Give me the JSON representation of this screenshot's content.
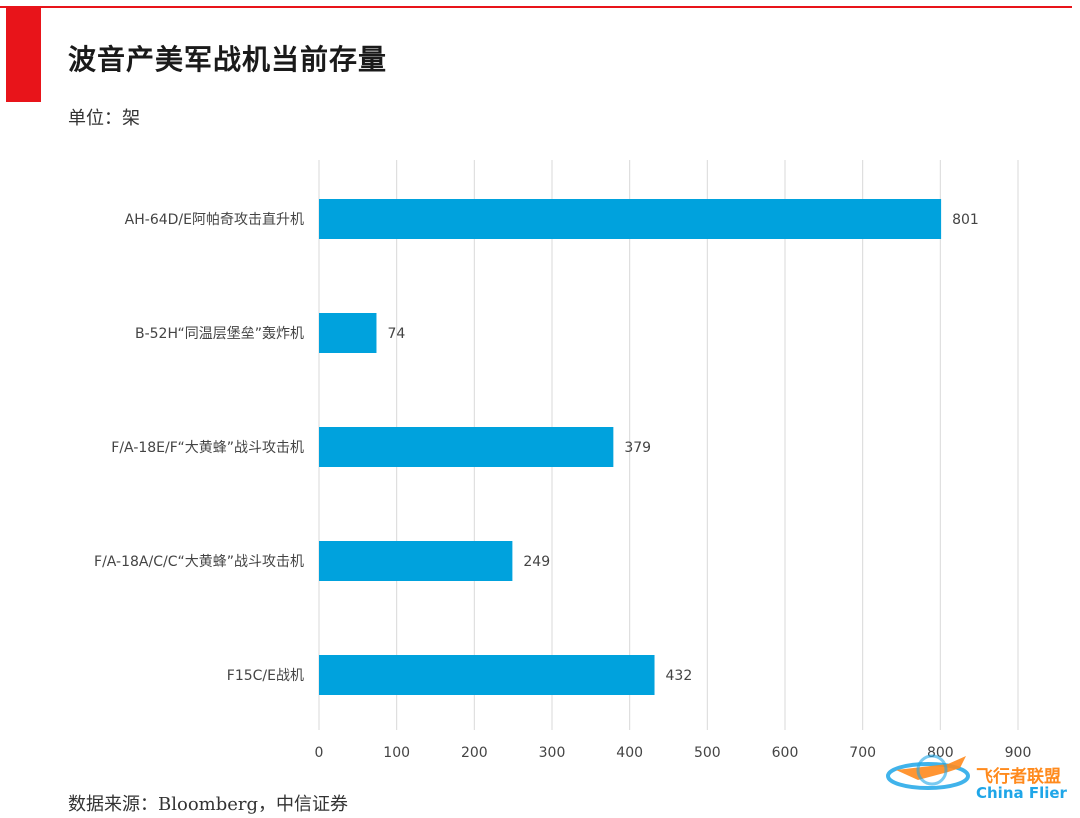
{
  "header": {
    "title": "波音产美军战机当前存量",
    "unit": "单位：架"
  },
  "footer": {
    "source": "数据来源：Bloomberg，中信证券"
  },
  "watermark": {
    "text_cn": "飞行者联盟",
    "text_en": "China Flier"
  },
  "colors": {
    "accent": "#e8141a",
    "bar": "#00a2dd",
    "grid": "#d9d9d9"
  },
  "chart_data": {
    "type": "bar",
    "orientation": "horizontal",
    "categories": [
      "AH-64D/E阿帕奇攻击直升机",
      "B-52H“同温层堡垒”轰炸机",
      "F/A-18E/F“大黄蜂”战斗攻击机",
      "F/A-18A/C/C“大黄蜂”战斗攻击机",
      "F15C/E战机"
    ],
    "values": [
      801,
      74,
      379,
      249,
      432
    ],
    "data_labels": [
      "801",
      "74",
      "379",
      "249",
      "432"
    ],
    "xlim": [
      0,
      900
    ],
    "x_ticks": [
      0,
      100,
      200,
      300,
      400,
      500,
      600,
      700,
      800,
      900
    ],
    "x_tick_labels": [
      "0",
      "100",
      "200",
      "300",
      "400",
      "500",
      "600",
      "700",
      "800",
      "900"
    ],
    "grid": true,
    "title": "",
    "xlabel": "",
    "ylabel": ""
  }
}
